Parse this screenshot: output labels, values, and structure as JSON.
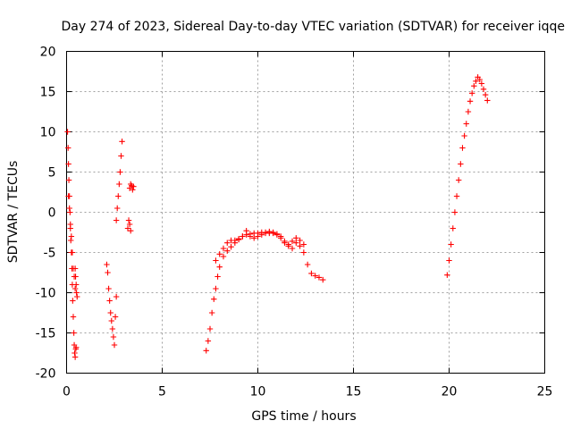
{
  "chart_data": {
    "type": "scatter",
    "title": "Day 274 of 2023, Sidereal Day-to-day VTEC variation (SDTVAR) for receiver iqqe",
    "xlabel": "GPS time / hours",
    "ylabel": "SDTVAR / TECUs",
    "xlim": [
      0,
      25
    ],
    "ylim": [
      -20,
      20
    ],
    "xticks": [
      "0",
      "5",
      "10",
      "15",
      "20",
      "25"
    ],
    "yticks": [
      "-20",
      "-15",
      "-10",
      "-5",
      "0",
      "5",
      "10",
      "15",
      "20"
    ],
    "grid": true,
    "marker": "plus",
    "marker_color": "#ff0000",
    "series": [
      {
        "name": "SDTVAR",
        "x": [
          0.05,
          0.08,
          0.1,
          0.12,
          0.15,
          0.18,
          0.2,
          0.22,
          0.25,
          0.28,
          0.3,
          0.32,
          0.35,
          0.38,
          0.4,
          0.42,
          0.45,
          0.48,
          0.5,
          0.1,
          0.15,
          0.2,
          0.25,
          0.3,
          0.35,
          0.4,
          0.45,
          0.45,
          0.47,
          0.5,
          0.52,
          0.55,
          2.1,
          2.15,
          2.2,
          2.25,
          2.3,
          2.35,
          2.4,
          2.45,
          2.5,
          2.55,
          2.6,
          2.6,
          2.65,
          2.7,
          2.75,
          2.8,
          2.85,
          2.9,
          3.2,
          3.25,
          3.3,
          3.35,
          3.4,
          3.45,
          3.5,
          3.3,
          3.35,
          7.3,
          7.4,
          7.5,
          7.6,
          7.7,
          7.8,
          7.9,
          8.0,
          8.2,
          8.4,
          8.6,
          8.8,
          9.0,
          9.2,
          9.4,
          9.6,
          9.8,
          10.0,
          10.2,
          10.4,
          10.6,
          10.8,
          11.0,
          11.2,
          11.4,
          11.6,
          11.8,
          12.0,
          12.2,
          12.4,
          12.6,
          12.8,
          13.0,
          13.2,
          13.4,
          7.8,
          8.0,
          8.2,
          8.4,
          8.6,
          8.8,
          9.0,
          9.2,
          9.4,
          9.6,
          9.8,
          10.0,
          10.2,
          10.4,
          10.6,
          10.8,
          11.0,
          11.2,
          11.4,
          11.6,
          11.8,
          12.0,
          12.2,
          12.4,
          19.9,
          20.0,
          20.1,
          20.2,
          20.3,
          20.4,
          20.5,
          20.6,
          20.7,
          20.8,
          20.9,
          21.0,
          21.1,
          21.2,
          21.3,
          21.4,
          21.5,
          21.6,
          21.7,
          21.8,
          21.9,
          22.0
        ],
        "y": [
          10.0,
          8.0,
          6.0,
          4.0,
          2.0,
          0.0,
          -2.0,
          -3.5,
          -5.0,
          -7.0,
          -9.0,
          -11.0,
          -13.0,
          -15.0,
          -16.5,
          -17.5,
          -18.0,
          -17.0,
          -16.8,
          2.0,
          0.5,
          -1.5,
          -3.0,
          -5.0,
          -7.0,
          -8.0,
          -9.5,
          -7.0,
          -8.0,
          -9.0,
          -10.0,
          -10.5,
          -6.5,
          -7.5,
          -9.5,
          -11.0,
          -12.5,
          -13.5,
          -14.5,
          -15.5,
          -16.5,
          -13.0,
          -10.5,
          -1.0,
          0.5,
          2.0,
          3.5,
          5.0,
          7.0,
          8.8,
          -2.0,
          -1.0,
          3.0,
          3.5,
          3.3,
          2.8,
          3.2,
          -1.5,
          -2.3,
          -17.2,
          -16.0,
          -14.5,
          -12.5,
          -10.8,
          -9.5,
          -8.0,
          -6.8,
          -5.5,
          -4.8,
          -4.3,
          -3.8,
          -3.4,
          -3.0,
          -2.8,
          -2.7,
          -2.6,
          -2.6,
          -2.5,
          -2.5,
          -2.6,
          -2.6,
          -2.7,
          -3.0,
          -3.6,
          -4.2,
          -4.5,
          -3.8,
          -4.2,
          -5.0,
          -6.5,
          -7.6,
          -7.9,
          -8.1,
          -8.4,
          -6.0,
          -5.2,
          -4.5,
          -3.8,
          -3.5,
          -3.5,
          -3.3,
          -3.0,
          -2.3,
          -3.0,
          -3.2,
          -3.0,
          -2.8,
          -2.6,
          -2.4,
          -2.5,
          -2.8,
          -3.2,
          -3.8,
          -4.0,
          -3.6,
          -3.2,
          -3.5,
          -4.0,
          -7.8,
          -6.0,
          -4.0,
          -2.0,
          0.0,
          2.0,
          4.0,
          6.0,
          8.0,
          9.5,
          11.0,
          12.5,
          13.8,
          14.8,
          15.7,
          16.3,
          16.8,
          16.5,
          16.0,
          15.3,
          14.6,
          13.9
        ]
      }
    ]
  }
}
